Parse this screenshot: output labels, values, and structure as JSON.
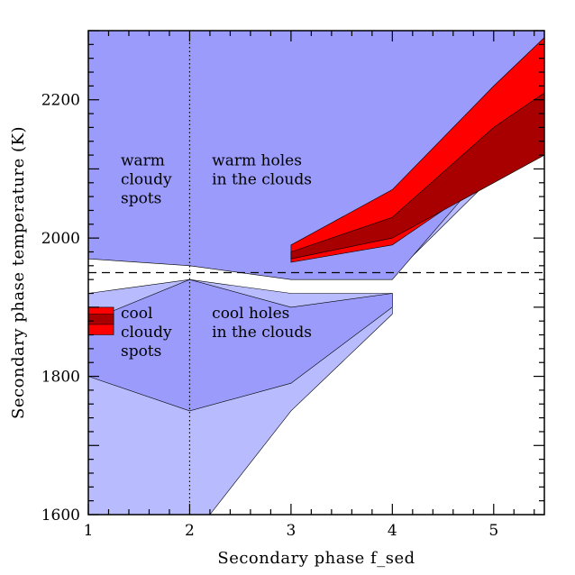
{
  "chart_data": {
    "type": "area",
    "xlabel": "Secondary phase f_sed",
    "ylabel": "Secondary phase temperature (K)",
    "xlim": [
      1,
      5.5
    ],
    "ylim": [
      1600,
      2300
    ],
    "xticks": [
      1,
      2,
      3,
      4,
      5
    ],
    "yticks": [
      1600,
      1800,
      2000,
      2200
    ],
    "grid": false,
    "colors": {
      "light_blue": "#b8bcff",
      "medium_blue": "#9a9bfb",
      "red": "#ff0000",
      "dark_red": "#a80000"
    },
    "regions": [
      {
        "fill": "light_blue",
        "polygon": [
          [
            1,
            1980
          ],
          [
            2,
            1960
          ],
          [
            3,
            1945
          ],
          [
            4,
            1945
          ],
          [
            5,
            2090
          ],
          [
            5.5,
            2130
          ],
          [
            5.5,
            2300
          ],
          [
            1,
            2300
          ]
        ]
      },
      {
        "fill": "medium_blue",
        "polygon": [
          [
            1,
            1970
          ],
          [
            2,
            1960
          ],
          [
            3,
            1940
          ],
          [
            4,
            1940
          ],
          [
            5,
            2110
          ],
          [
            5.5,
            2150
          ],
          [
            5.5,
            2300
          ],
          [
            1,
            2300
          ]
        ]
      },
      {
        "fill": "light_blue",
        "polygon": [
          [
            1,
            1920
          ],
          [
            2,
            1940
          ],
          [
            3,
            1920
          ],
          [
            4,
            1920
          ],
          [
            4,
            1890
          ],
          [
            3,
            1750
          ],
          [
            2.2,
            1600
          ],
          [
            1,
            1600
          ]
        ]
      },
      {
        "fill": "medium_blue",
        "polygon": [
          [
            1,
            1880
          ],
          [
            2,
            1940
          ],
          [
            3,
            1900
          ],
          [
            4,
            1920
          ],
          [
            4,
            1900
          ],
          [
            3,
            1790
          ],
          [
            2,
            1750
          ],
          [
            1,
            1800
          ]
        ]
      },
      {
        "fill": "red",
        "polygon": [
          [
            3,
            1990
          ],
          [
            4,
            2070
          ],
          [
            5,
            2220
          ],
          [
            5.5,
            2290
          ],
          [
            5.5,
            2140
          ],
          [
            5,
            2090
          ],
          [
            4,
            1990
          ],
          [
            3,
            1965
          ]
        ]
      },
      {
        "fill": "dark_red",
        "polygon": [
          [
            3,
            1980
          ],
          [
            4,
            2030
          ],
          [
            5,
            2160
          ],
          [
            5.5,
            2210
          ],
          [
            5.5,
            2120
          ],
          [
            5,
            2080
          ],
          [
            4,
            2000
          ],
          [
            3,
            1970
          ]
        ]
      },
      {
        "fill": "red",
        "polygon": [
          [
            1,
            1900
          ],
          [
            1.25,
            1900
          ],
          [
            1.25,
            1860
          ],
          [
            1,
            1860
          ]
        ]
      },
      {
        "fill": "dark_red",
        "polygon": [
          [
            1,
            1890
          ],
          [
            1.25,
            1890
          ],
          [
            1.25,
            1875
          ],
          [
            1,
            1875
          ]
        ]
      }
    ],
    "reference_lines": [
      {
        "orientation": "horizontal",
        "value": 1950,
        "style": "dashed"
      },
      {
        "orientation": "vertical",
        "value": 2,
        "style": "dotted"
      }
    ],
    "annotations": [
      {
        "lines": [
          "warm",
          "cloudy",
          "spots"
        ],
        "x": 1.32,
        "y": 2105
      },
      {
        "lines": [
          "warm holes",
          "in the clouds"
        ],
        "x": 2.22,
        "y": 2105
      },
      {
        "lines": [
          "cool",
          "cloudy",
          "spots"
        ],
        "x": 1.32,
        "y": 1884
      },
      {
        "lines": [
          "cool holes",
          "in the clouds"
        ],
        "x": 2.22,
        "y": 1884
      }
    ]
  }
}
